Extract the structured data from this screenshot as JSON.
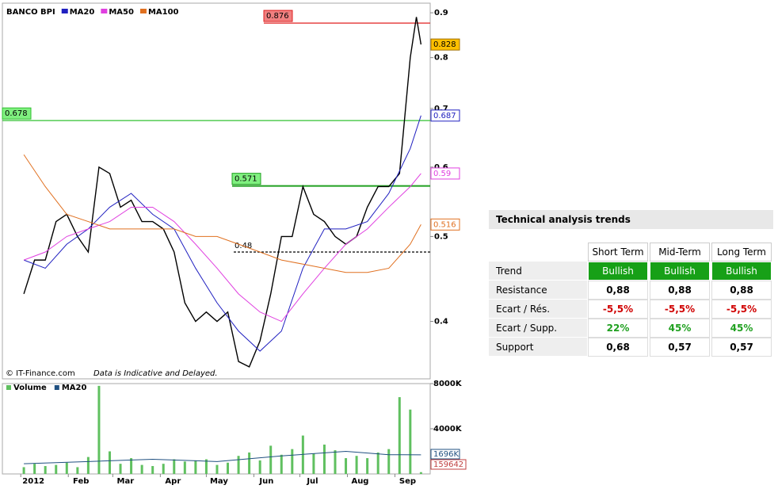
{
  "chart_data": [
    {
      "type": "line",
      "title": "BANCO BPI",
      "note": "© IT-Finance.com",
      "disclaimer": "Data is Indicative and Delayed.",
      "log_scale": true,
      "xlim": [
        -11,
        268
      ],
      "xticks": [
        {
          "value": 1,
          "label": "2012"
        },
        {
          "value": 32,
          "label": "Feb"
        },
        {
          "value": 61,
          "label": "Mar"
        },
        {
          "value": 92,
          "label": "Apr"
        },
        {
          "value": 122,
          "label": "May"
        },
        {
          "value": 153,
          "label": "Jun"
        },
        {
          "value": 183,
          "label": "Jul"
        },
        {
          "value": 214,
          "label": "Aug"
        },
        {
          "value": 245,
          "label": "Sep"
        }
      ],
      "ylim": [
        0.344,
        0.923
      ],
      "yticks": [
        0.4,
        0.5,
        0.6,
        0.7,
        0.8,
        0.9
      ],
      "levels": [
        {
          "value": 0.876,
          "color": "#e02020"
        },
        {
          "value": 0.678,
          "color": "#30c030"
        },
        {
          "value": 0.571,
          "color": "#20a020"
        },
        {
          "value": 0.48,
          "color": "#000000"
        }
      ],
      "series": [
        {
          "name": "BANCO BPI",
          "color": "#000000",
          "x": [
            3,
            10,
            17,
            24,
            31,
            38,
            45,
            52,
            59,
            66,
            73,
            80,
            87,
            94,
            101,
            108,
            115,
            122,
            129,
            136,
            143,
            150,
            157,
            164,
            171,
            178,
            185,
            192,
            199,
            206,
            213,
            220,
            227,
            234,
            241,
            248,
            255,
            259,
            262
          ],
          "values": [
            0.43,
            0.47,
            0.47,
            0.52,
            0.53,
            0.5,
            0.48,
            0.6,
            0.59,
            0.54,
            0.55,
            0.52,
            0.52,
            0.51,
            0.48,
            0.42,
            0.4,
            0.41,
            0.4,
            0.41,
            0.36,
            0.355,
            0.38,
            0.43,
            0.5,
            0.5,
            0.57,
            0.53,
            0.52,
            0.5,
            0.49,
            0.5,
            0.54,
            0.57,
            0.57,
            0.59,
            0.8,
            0.89,
            0.828
          ]
        },
        {
          "name": "MA20",
          "color": "#2020c0",
          "x": [
            3,
            17,
            31,
            45,
            59,
            73,
            87,
            101,
            115,
            129,
            143,
            157,
            171,
            185,
            199,
            213,
            227,
            241,
            255,
            262
          ],
          "values": [
            0.47,
            0.46,
            0.49,
            0.51,
            0.54,
            0.56,
            0.53,
            0.51,
            0.46,
            0.42,
            0.39,
            0.37,
            0.39,
            0.46,
            0.51,
            0.51,
            0.52,
            0.56,
            0.63,
            0.687
          ]
        },
        {
          "name": "MA50",
          "color": "#e040e0",
          "x": [
            3,
            17,
            31,
            45,
            59,
            73,
            87,
            101,
            115,
            129,
            143,
            157,
            171,
            185,
            199,
            213,
            227,
            241,
            255,
            262
          ],
          "values": [
            0.47,
            0.48,
            0.5,
            0.51,
            0.52,
            0.54,
            0.54,
            0.52,
            0.49,
            0.46,
            0.43,
            0.41,
            0.4,
            0.43,
            0.46,
            0.49,
            0.51,
            0.54,
            0.57,
            0.59
          ]
        },
        {
          "name": "MA100",
          "color": "#e07020",
          "x": [
            3,
            17,
            31,
            45,
            59,
            73,
            87,
            101,
            115,
            129,
            143,
            157,
            171,
            185,
            199,
            213,
            227,
            241,
            255,
            262
          ],
          "values": [
            0.62,
            0.57,
            0.53,
            0.52,
            0.51,
            0.51,
            0.51,
            0.51,
            0.5,
            0.5,
            0.49,
            0.48,
            0.47,
            0.465,
            0.46,
            0.455,
            0.455,
            0.46,
            0.49,
            0.516
          ]
        }
      ]
    },
    {
      "type": "bar",
      "xlim": [
        -11,
        268
      ],
      "ylim": [
        0,
        8000000
      ],
      "yticks": [
        {
          "value": 8000000,
          "label": "8000K"
        },
        {
          "value": 4000000,
          "label": "4000K"
        }
      ],
      "series": [
        {
          "name": "Volume",
          "color": "#60c060",
          "x": [
            3,
            10,
            17,
            24,
            31,
            38,
            45,
            52,
            59,
            66,
            73,
            80,
            87,
            94,
            101,
            108,
            115,
            122,
            129,
            136,
            143,
            150,
            157,
            164,
            171,
            178,
            185,
            192,
            199,
            206,
            213,
            220,
            227,
            234,
            241,
            248,
            255,
            262
          ],
          "values": [
            600000,
            900000,
            700000,
            800000,
            1000000,
            600000,
            1500000,
            7800000,
            2000000,
            900000,
            1400000,
            800000,
            700000,
            900000,
            1300000,
            1100000,
            1200000,
            1300000,
            800000,
            1000000,
            1600000,
            1900000,
            1200000,
            2500000,
            1700000,
            2200000,
            3400000,
            1800000,
            2600000,
            2100000,
            1400000,
            1600000,
            1400000,
            1900000,
            2200000,
            6800000,
            5700000,
            159642
          ]
        },
        {
          "name": "MA20",
          "color": "#205080",
          "x": [
            3,
            45,
            87,
            129,
            171,
            213,
            241,
            262
          ],
          "values": [
            900000,
            1100000,
            1300000,
            1100000,
            1600000,
            2000000,
            1700000,
            1696000
          ],
          "last_value_label": "1696K"
        }
      ]
    }
  ],
  "table": {
    "title": "Technical analysis trends",
    "columns": [
      "Short Term",
      "Mid-Term",
      "Long Term"
    ],
    "rows": [
      {
        "label": "Trend",
        "cells": [
          "Bullish",
          "Bullish",
          "Bullish"
        ]
      },
      {
        "label": "Resistance",
        "cells": [
          "0,88",
          "0,88",
          "0,88"
        ]
      },
      {
        "label": "Ecart / Rés.",
        "cells": [
          "-5,5%",
          "-5,5%",
          "-5,5%"
        ]
      },
      {
        "label": "Ecart / Supp.",
        "cells": [
          "22%",
          "45%",
          "45%"
        ]
      },
      {
        "label": "Support",
        "cells": [
          "0,68",
          "0,57",
          "0,57"
        ]
      }
    ]
  }
}
